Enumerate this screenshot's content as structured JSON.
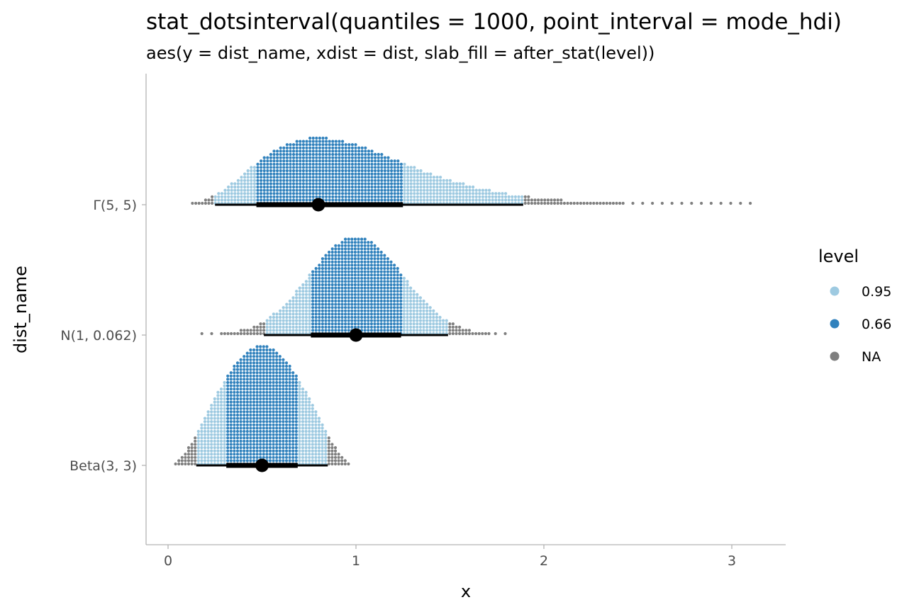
{
  "chart_data": {
    "type": "dotsinterval",
    "title": "stat_dotsinterval(quantiles = 1000, point_interval = mode_hdi)",
    "subtitle": "aes(y = dist_name, xdist = dist, slab_fill = after_stat(level))",
    "xlabel": "x",
    "ylabel": "dist_name",
    "xlim": [
      -0.12,
      3.3
    ],
    "x_ticks": [
      0,
      1,
      2,
      3
    ],
    "x_tick_labels": [
      "0",
      "1",
      "2",
      "3"
    ],
    "grid": false,
    "categories": [
      "Beta(3, 3)",
      "N(1, 0.062)",
      "Γ(5, 5)"
    ],
    "legend": {
      "title": "level",
      "position": "right",
      "entries": [
        {
          "label": "0.95",
          "color": "#9ecae1"
        },
        {
          "label": "0.66",
          "color": "#3182bd"
        },
        {
          "label": "NA",
          "color": "#7f7f7f"
        }
      ]
    },
    "series": [
      {
        "category": "Beta(3, 3)",
        "dist": "beta",
        "params": [
          3,
          3
        ],
        "point": 0.5,
        "interval_66": [
          0.31,
          0.69
        ],
        "interval_95": [
          0.15,
          0.85
        ],
        "range": [
          0.04,
          0.96
        ]
      },
      {
        "category": "N(1, 0.062)",
        "dist": "normal",
        "params": [
          1,
          0.25
        ],
        "point": 1.0,
        "interval_66": [
          0.76,
          1.24
        ],
        "interval_95": [
          0.51,
          1.49
        ],
        "range": [
          0.18,
          1.83
        ]
      },
      {
        "category": "Γ(5, 5)",
        "dist": "gamma",
        "params": [
          5,
          5
        ],
        "point": 0.8,
        "interval_66": [
          0.47,
          1.25
        ],
        "interval_95": [
          0.25,
          1.89
        ],
        "range": [
          0.13,
          3.14
        ]
      }
    ]
  }
}
